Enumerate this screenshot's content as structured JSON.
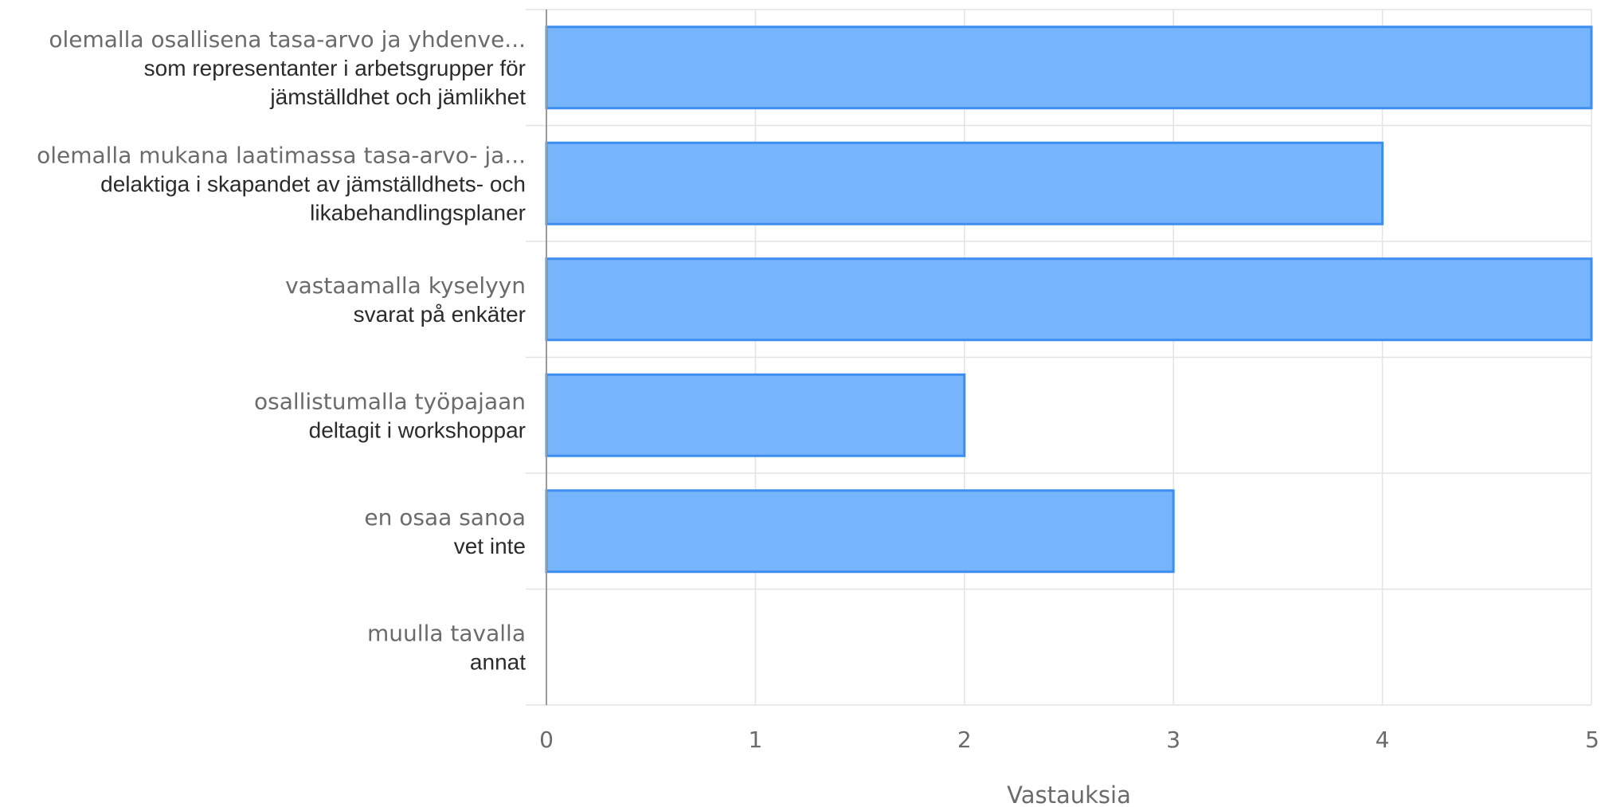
{
  "chart_data": {
    "type": "bar",
    "orientation": "horizontal",
    "categories": [
      {
        "fi": "olemalla osallisena tasa-arvo ja yhdenve...",
        "sv": [
          "som representanter i arbetsgrupper för",
          "jämställdhet och jämlikhet"
        ]
      },
      {
        "fi": "olemalla mukana laatimassa tasa-arvo- ja...",
        "sv": [
          "delaktiga i skapandet av jämställdhets- och",
          "likabehandlingsplaner"
        ]
      },
      {
        "fi": "vastaamalla kyselyyn",
        "sv": [
          "svarat på enkäter"
        ]
      },
      {
        "fi": "osallistumalla työpajaan",
        "sv": [
          "deltagit i workshoppar"
        ]
      },
      {
        "fi": "en osaa sanoa",
        "sv": [
          "vet inte"
        ]
      },
      {
        "fi": "muulla tavalla",
        "sv": [
          "annat"
        ]
      }
    ],
    "values": [
      5,
      4,
      5,
      2,
      3,
      0
    ],
    "xlabel": "Vastauksia",
    "xlim": [
      0,
      5
    ],
    "xticks": [
      "0",
      "1",
      "2",
      "3",
      "4",
      "5"
    ],
    "grid": true,
    "bar_color": "#76b4fc",
    "bar_border_color": "#3d8ef0"
  }
}
